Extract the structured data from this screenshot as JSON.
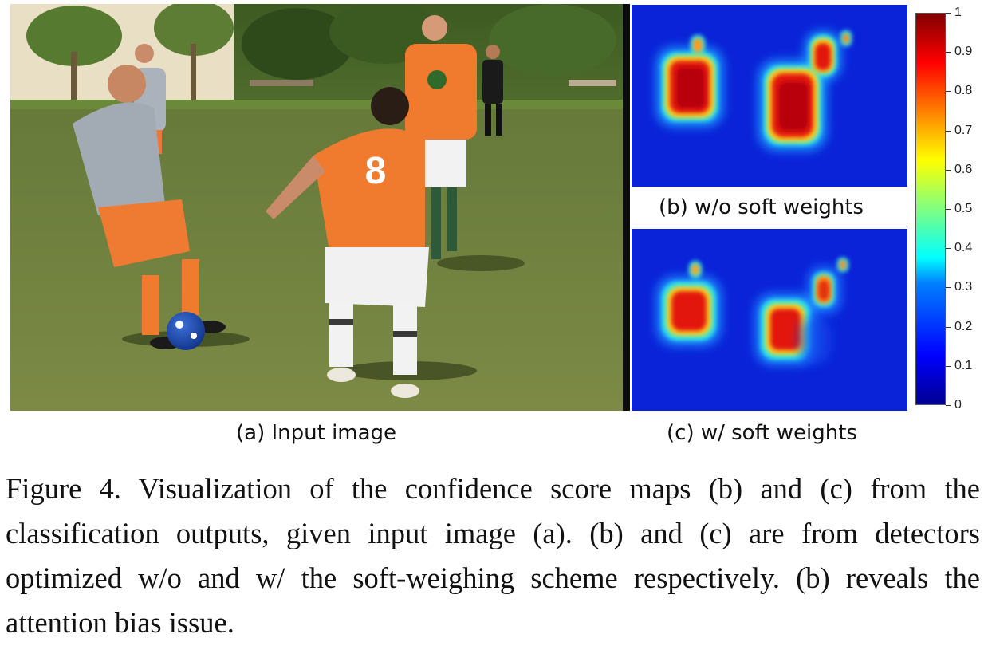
{
  "panels": {
    "a": {
      "caption": "(a) Input image",
      "jersey_number": "8"
    },
    "b": {
      "caption": "(b) w/o soft weights"
    },
    "c": {
      "caption": "(c) w/ soft weights"
    }
  },
  "colorbar": {
    "colormap": "jet",
    "min": 0,
    "max": 1,
    "ticks": [
      "1",
      "0.9",
      "0.8",
      "0.7",
      "0.6",
      "0.5",
      "0.4",
      "0.3",
      "0.2",
      "0.1",
      "0"
    ]
  },
  "figure_caption": "Figure 4. Visualization of the confidence score maps (b) and (c) from the classification outputs, given input image (a). (b) and (c) are from detectors optimized w/o and w/ the soft-weighing scheme respectively. (b) reveals the attention bias issue.",
  "colors": {
    "background": "#ffffff",
    "grass": "#6d7f3c",
    "orange_jersey": "#f07a2e",
    "grey_jersey": "#9aa4ad",
    "heatmap_low": "#0a22d8",
    "heatmap_high": "#b8000f"
  }
}
